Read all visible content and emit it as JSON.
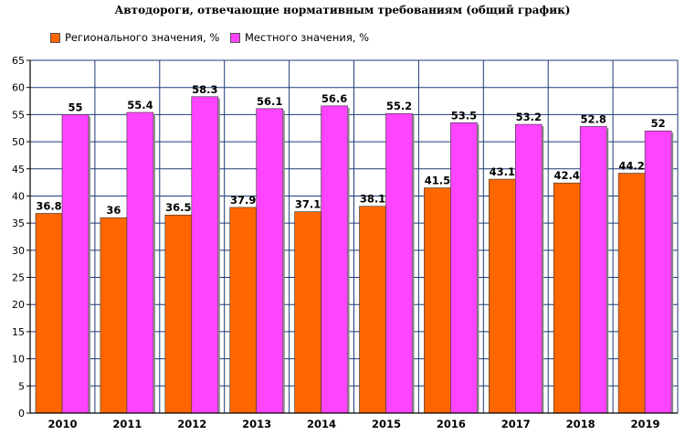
{
  "chart_data": {
    "type": "bar",
    "title": "Автодороги, отвечающие нормативным требованиям (общий график)",
    "xlabel": "",
    "ylabel": "",
    "categories": [
      "2010",
      "2011",
      "2012",
      "2013",
      "2014",
      "2015",
      "2016",
      "2017",
      "2018",
      "2019"
    ],
    "series": [
      {
        "name": "Регионального значения, %",
        "color": "#ff6600",
        "values": [
          36.8,
          36,
          36.5,
          37.9,
          37.1,
          38.1,
          41.5,
          43.1,
          42.4,
          44.2
        ]
      },
      {
        "name": "Местного значения, %",
        "color": "#ff44ff",
        "values": [
          55,
          55.4,
          58.3,
          56.1,
          56.6,
          55.2,
          53.5,
          53.2,
          52.8,
          52
        ]
      }
    ],
    "ylim": [
      0,
      65
    ],
    "yticks": [
      "0",
      "5",
      "10",
      "15",
      "20",
      "25",
      "30",
      "35",
      "40",
      "45",
      "50",
      "55",
      "60",
      "65"
    ],
    "grid": true,
    "legend_position": "top-left",
    "colors": {
      "gridline": "#1f3a7a",
      "background": "#ffffff"
    }
  }
}
